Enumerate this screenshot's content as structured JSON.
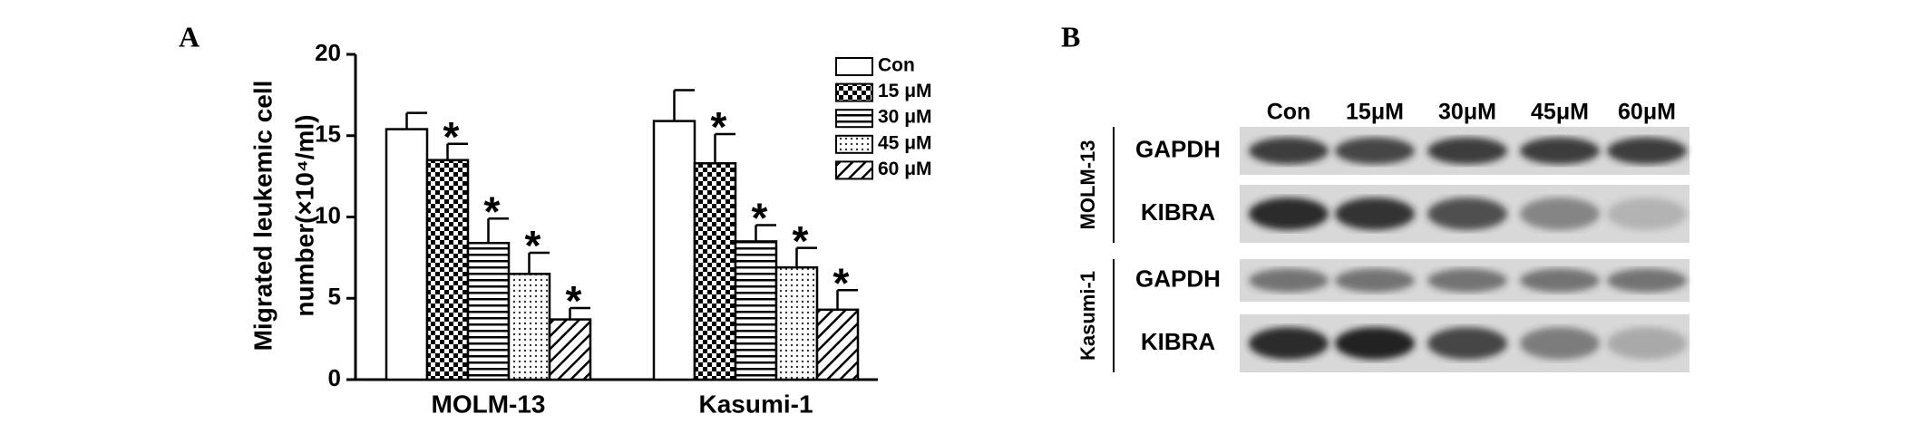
{
  "chart_data": {
    "type": "bar",
    "panel_label": "A",
    "y_label_lines": [
      "Migrated leukemic cell",
      "number(×10⁴/ml)"
    ],
    "categories": [
      "MOLM-13",
      "Kasumi-1"
    ],
    "ylim": [
      0,
      20
    ],
    "yticks": [
      0,
      5,
      10,
      15,
      20
    ],
    "series": [
      {
        "name": "Con",
        "pattern": "none",
        "values": [
          15.4,
          15.9
        ],
        "errors": [
          1.0,
          1.9
        ]
      },
      {
        "name": "15 μM",
        "pattern": "checker",
        "values": [
          13.5,
          13.3
        ],
        "errors": [
          1.0,
          1.8
        ],
        "annotation": "*"
      },
      {
        "name": "30 μM",
        "pattern": "hlines",
        "values": [
          8.4,
          8.5
        ],
        "errors": [
          1.5,
          1.0
        ],
        "annotation": "*"
      },
      {
        "name": "45 μM",
        "pattern": "dots",
        "values": [
          6.5,
          6.9
        ],
        "errors": [
          1.3,
          1.2
        ],
        "annotation": "*"
      },
      {
        "name": "60 μM",
        "pattern": "diag",
        "values": [
          3.7,
          4.3
        ],
        "errors": [
          0.7,
          1.2
        ],
        "annotation": "*"
      }
    ]
  },
  "blot": {
    "panel_label": "B",
    "lanes": [
      "Con",
      "15μM",
      "30μM",
      "45μM",
      "60μM"
    ],
    "groups": [
      {
        "name": "MOLM-13",
        "rows": [
          "GAPDH",
          "KIBRA"
        ]
      },
      {
        "name": "Kasumi-1",
        "rows": [
          "GAPDH",
          "KIBRA"
        ]
      }
    ]
  }
}
